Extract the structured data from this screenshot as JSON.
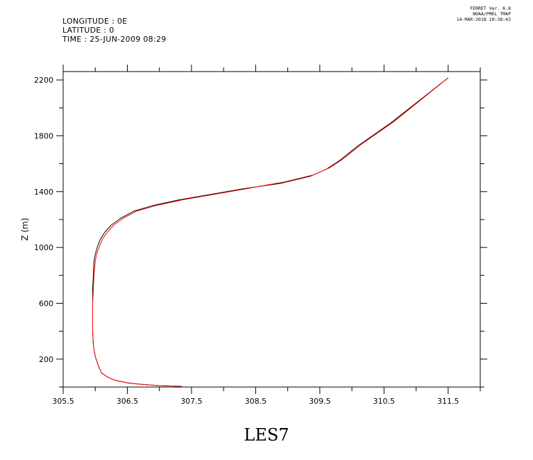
{
  "header": {
    "longitude": "LONGITUDE : 0E",
    "latitude": "LATITUDE : 0",
    "time": "TIME : 25-JUN-2009 08:29"
  },
  "stamp": {
    "line1": "FERRET Ver. 6.8",
    "line2": "NOAA/PMEL TMAP",
    "line3": "14-MAR-2018 10:38:43"
  },
  "caption": "LES7",
  "chart_data": {
    "type": "line",
    "xlabel": "",
    "ylabel": "Z (m)",
    "xlim": [
      305.5,
      312.0
    ],
    "ylim": [
      0,
      2260
    ],
    "x_ticks": [
      305.5,
      306.5,
      307.5,
      308.5,
      309.5,
      310.5,
      311.5
    ],
    "x_tick_labels": [
      "305.5",
      "306.5",
      "307.5",
      "308.5",
      "309.5",
      "310.5",
      "311.5"
    ],
    "y_ticks": [
      200,
      600,
      1000,
      1400,
      1800,
      2200
    ],
    "y_tick_labels": [
      "200",
      "600",
      "1000",
      "1400",
      "1800",
      "2200"
    ],
    "grid": false,
    "series": [
      {
        "color": "#000000",
        "points": [
          [
            307.35,
            5
          ],
          [
            307.0,
            10
          ],
          [
            306.7,
            20
          ],
          [
            306.5,
            30
          ],
          [
            306.3,
            50
          ],
          [
            306.2,
            70
          ],
          [
            306.1,
            100
          ],
          [
            306.05,
            150
          ],
          [
            306.0,
            220
          ],
          [
            305.97,
            300
          ],
          [
            305.96,
            400
          ],
          [
            305.96,
            500
          ],
          [
            305.96,
            600
          ],
          [
            305.96,
            700
          ],
          [
            305.97,
            800
          ],
          [
            305.98,
            900
          ],
          [
            306.0,
            950
          ],
          [
            306.03,
            1000
          ],
          [
            306.08,
            1060
          ],
          [
            306.15,
            1110
          ],
          [
            306.25,
            1160
          ],
          [
            306.4,
            1210
          ],
          [
            306.6,
            1260
          ],
          [
            306.9,
            1300
          ],
          [
            307.3,
            1340
          ],
          [
            307.8,
            1380
          ],
          [
            308.3,
            1420
          ],
          [
            308.9,
            1460
          ],
          [
            309.35,
            1510
          ],
          [
            309.6,
            1560
          ],
          [
            309.8,
            1620
          ],
          [
            310.1,
            1730
          ],
          [
            310.6,
            1890
          ],
          [
            311.5,
            2215
          ]
        ]
      },
      {
        "color": "#ff0000",
        "points": [
          [
            307.35,
            5
          ],
          [
            307.0,
            10
          ],
          [
            306.7,
            20
          ],
          [
            306.5,
            30
          ],
          [
            306.3,
            50
          ],
          [
            306.2,
            70
          ],
          [
            306.1,
            100
          ],
          [
            306.05,
            150
          ],
          [
            306.0,
            220
          ],
          [
            305.97,
            300
          ],
          [
            305.96,
            400
          ],
          [
            305.96,
            500
          ],
          [
            305.96,
            600
          ],
          [
            305.97,
            700
          ],
          [
            305.98,
            800
          ],
          [
            306.0,
            900
          ],
          [
            306.02,
            950
          ],
          [
            306.06,
            1000
          ],
          [
            306.11,
            1060
          ],
          [
            306.19,
            1110
          ],
          [
            306.29,
            1160
          ],
          [
            306.44,
            1210
          ],
          [
            306.64,
            1260
          ],
          [
            306.95,
            1300
          ],
          [
            307.35,
            1340
          ],
          [
            307.85,
            1380
          ],
          [
            308.35,
            1420
          ],
          [
            308.95,
            1470
          ],
          [
            309.4,
            1520
          ],
          [
            309.65,
            1570
          ],
          [
            309.85,
            1630
          ],
          [
            310.15,
            1740
          ],
          [
            310.65,
            1900
          ],
          [
            311.5,
            2215
          ]
        ]
      }
    ]
  }
}
